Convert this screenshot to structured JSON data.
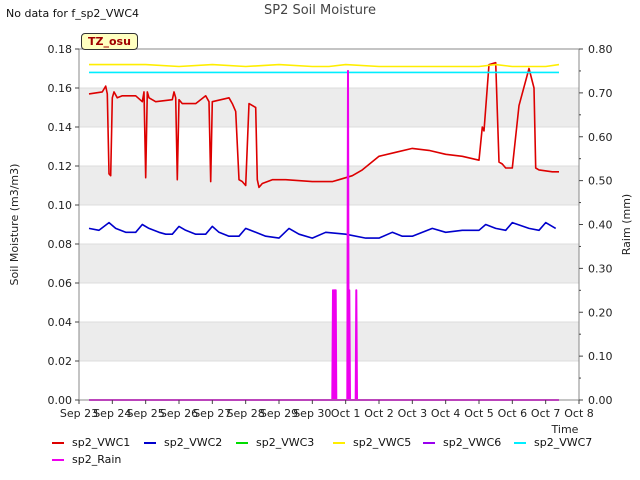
{
  "chart_data": {
    "type": "line",
    "title": "SP2 Soil Moisture",
    "no_data_note": "No data for f_sp2_VWC4",
    "station_label": "TZ_osu",
    "xlabel": "Time",
    "ylabel": "Soil Moisture (m3/m3)",
    "y2label": "Raim (mm)",
    "x_tick_labels": [
      "Sep 23",
      "Sep 24",
      "Sep 25",
      "Sep 26",
      "Sep 27",
      "Sep 28",
      "Sep 29",
      "Sep 30",
      "Oct 1",
      "Oct 2",
      "Oct 3",
      "Oct 4",
      "Oct 5",
      "Oct 6",
      "Oct 7",
      "Oct 8"
    ],
    "xlim": [
      0,
      15
    ],
    "ylim": [
      0.0,
      0.18
    ],
    "y_ticks": [
      "0.00",
      "0.02",
      "0.04",
      "0.06",
      "0.08",
      "0.10",
      "0.12",
      "0.14",
      "0.16",
      "0.18"
    ],
    "y2lim": [
      0.0,
      0.8
    ],
    "y2_ticks": [
      "0.00",
      "0.10",
      "0.20",
      "0.30",
      "0.40",
      "0.50",
      "0.60",
      "0.70",
      "0.80"
    ],
    "series": [
      {
        "name": "sp2_VWC1",
        "color": "#dd0000",
        "axis": "left",
        "x": [
          0.3,
          0.7,
          0.8,
          0.85,
          0.9,
          0.95,
          1.0,
          1.05,
          1.15,
          1.3,
          1.7,
          1.9,
          1.95,
          2.0,
          2.05,
          2.1,
          2.3,
          2.8,
          2.85,
          2.9,
          2.95,
          3.0,
          3.1,
          3.5,
          3.8,
          3.9,
          3.95,
          4.0,
          4.5,
          4.6,
          4.7,
          4.8,
          4.9,
          5.0,
          5.1,
          5.3,
          5.35,
          5.4,
          5.5,
          5.8,
          6.2,
          7.0,
          7.6,
          7.8,
          8.0,
          8.2,
          8.5,
          9.0,
          9.5,
          10.0,
          10.5,
          11.0,
          11.5,
          12.0,
          12.1,
          12.15,
          12.3,
          12.5,
          12.6,
          12.7,
          12.8,
          13.0,
          13.2,
          13.5,
          13.65,
          13.7,
          13.8,
          14.2,
          14.4
        ],
        "values": [
          0.157,
          0.158,
          0.161,
          0.157,
          0.116,
          0.115,
          0.155,
          0.158,
          0.155,
          0.156,
          0.156,
          0.153,
          0.158,
          0.114,
          0.158,
          0.155,
          0.153,
          0.154,
          0.158,
          0.155,
          0.113,
          0.154,
          0.152,
          0.152,
          0.156,
          0.153,
          0.112,
          0.153,
          0.155,
          0.152,
          0.148,
          0.113,
          0.112,
          0.11,
          0.152,
          0.15,
          0.113,
          0.109,
          0.111,
          0.113,
          0.113,
          0.112,
          0.112,
          0.113,
          0.114,
          0.115,
          0.118,
          0.125,
          0.127,
          0.129,
          0.128,
          0.126,
          0.125,
          0.123,
          0.14,
          0.138,
          0.172,
          0.173,
          0.122,
          0.121,
          0.119,
          0.119,
          0.151,
          0.17,
          0.16,
          0.119,
          0.118,
          0.117,
          0.117
        ]
      },
      {
        "name": "sp2_VWC2",
        "color": "#0000cc",
        "axis": "left",
        "x": [
          0.3,
          0.6,
          0.9,
          1.1,
          1.4,
          1.7,
          1.9,
          2.1,
          2.4,
          2.6,
          2.8,
          3.0,
          3.2,
          3.5,
          3.8,
          4.0,
          4.2,
          4.5,
          4.8,
          5.0,
          5.3,
          5.6,
          6.0,
          6.3,
          6.6,
          7.0,
          7.4,
          8.0,
          8.6,
          9.0,
          9.4,
          9.7,
          10.0,
          10.6,
          11.0,
          11.5,
          12.0,
          12.2,
          12.5,
          12.8,
          13.0,
          13.5,
          13.8,
          14.0,
          14.3
        ],
        "values": [
          0.088,
          0.087,
          0.091,
          0.088,
          0.086,
          0.086,
          0.09,
          0.088,
          0.086,
          0.085,
          0.085,
          0.089,
          0.087,
          0.085,
          0.085,
          0.089,
          0.086,
          0.084,
          0.084,
          0.088,
          0.086,
          0.084,
          0.083,
          0.088,
          0.085,
          0.083,
          0.086,
          0.085,
          0.083,
          0.083,
          0.086,
          0.084,
          0.084,
          0.088,
          0.086,
          0.087,
          0.087,
          0.09,
          0.088,
          0.087,
          0.091,
          0.088,
          0.087,
          0.091,
          0.088
        ]
      },
      {
        "name": "sp2_VWC3",
        "color": "#00dd00",
        "axis": "left",
        "x": [],
        "values": []
      },
      {
        "name": "sp2_VWC5",
        "color": "#ffee00",
        "axis": "left",
        "x": [
          0.3,
          1.0,
          2.0,
          3.0,
          4.0,
          5.0,
          6.0,
          7.0,
          7.5,
          8.0,
          9.0,
          10.0,
          11.0,
          12.0,
          12.5,
          13.0,
          14.0,
          14.4
        ],
        "values": [
          0.172,
          0.172,
          0.172,
          0.171,
          0.172,
          0.171,
          0.172,
          0.171,
          0.171,
          0.172,
          0.171,
          0.171,
          0.171,
          0.171,
          0.172,
          0.171,
          0.171,
          0.172
        ]
      },
      {
        "name": "sp2_VWC6",
        "color": "#9900ee",
        "axis": "left",
        "x": [],
        "values": []
      },
      {
        "name": "sp2_VWC7",
        "color": "#00eeff",
        "axis": "left",
        "x": [
          0.3,
          14.4
        ],
        "values": [
          0.168,
          0.168
        ]
      },
      {
        "name": "sp2_Rain",
        "color": "#ee00ee",
        "axis": "right",
        "x": [
          0.3,
          7.6,
          7.62,
          7.64,
          7.66,
          7.68,
          7.7,
          7.72,
          7.74,
          8.05,
          8.07,
          8.09,
          8.11,
          8.13,
          8.3,
          8.32,
          8.34,
          8.36,
          14.4
        ],
        "values": [
          0,
          0,
          0.25,
          0,
          0.25,
          0,
          0.25,
          0,
          0,
          0,
          0.75,
          0,
          0.25,
          0,
          0,
          0.25,
          0,
          0,
          0
        ]
      }
    ],
    "legend_order": [
      "sp2_VWC1",
      "sp2_VWC2",
      "sp2_VWC3",
      "sp2_VWC5",
      "sp2_VWC6",
      "sp2_VWC7",
      "sp2_Rain"
    ]
  }
}
